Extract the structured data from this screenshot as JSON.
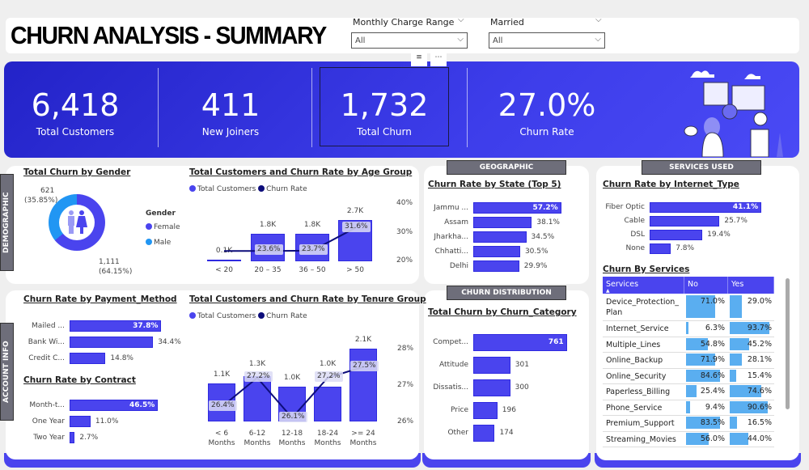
{
  "header": {
    "title": "CHURN ANALYSIS - SUMMARY",
    "slicers": [
      {
        "label": "Monthly Charge Range",
        "value": "All"
      },
      {
        "label": "Married",
        "value": "All"
      }
    ]
  },
  "kpis": [
    {
      "value": "6,418",
      "label": "Total Customers"
    },
    {
      "value": "411",
      "label": "New Joiners"
    },
    {
      "value": "1,732",
      "label": "Total Churn"
    },
    {
      "value": "27.0%",
      "label": "Churn Rate"
    }
  ],
  "sections": {
    "demographic": "DEMOGRAPHIC",
    "account": "ACCOUNT INFO",
    "geographic": "GEOGRAPHIC",
    "distribution": "CHURN DISTRIBUTION",
    "services": "SERVICES USED"
  },
  "colors": {
    "primary": "#4a44ee",
    "line": "#0d0d7a",
    "male": "#2196f3",
    "table_bar": "#5aaef0"
  },
  "gender": {
    "title": "Total Churn by Gender",
    "legend_title": "Gender",
    "slices": [
      {
        "name": "Female",
        "value": "1,111",
        "pct": "(64.15%)",
        "share": 64.15
      },
      {
        "name": "Male",
        "value": "621",
        "pct": "(35.85%)",
        "share": 35.85
      }
    ]
  },
  "age": {
    "title": "Total Customers and Churn Rate by Age Group",
    "legend": [
      "Total Customers",
      "Churn Rate"
    ],
    "axis": [
      "40%",
      "30%",
      "20%"
    ],
    "groups": [
      {
        "label": "< 20",
        "total": 0.1,
        "total_label": "0.1K",
        "rate": null,
        "rate_label": ""
      },
      {
        "label": "20 – 35",
        "total": 1.8,
        "total_label": "1.8K",
        "rate": 23.6,
        "rate_label": "23.6%"
      },
      {
        "label": "36 – 50",
        "total": 1.8,
        "total_label": "1.8K",
        "rate": 23.7,
        "rate_label": "23.7%"
      },
      {
        "label": "> 50",
        "total": 2.7,
        "total_label": "2.7K",
        "rate": 31.6,
        "rate_label": "31.6%"
      }
    ]
  },
  "payment": {
    "title": "Churn Rate by Payment_Method",
    "items": [
      {
        "label": "Mailed ...",
        "value": 37.8,
        "text": "37.8%"
      },
      {
        "label": "Bank Wi...",
        "value": 34.4,
        "text": "34.4%"
      },
      {
        "label": "Credit C...",
        "value": 14.8,
        "text": "14.8%"
      }
    ]
  },
  "contract": {
    "title": "Churn Rate by Contract",
    "items": [
      {
        "label": "Month-t...",
        "value": 46.5,
        "text": "46.5%"
      },
      {
        "label": "One Year",
        "value": 11.0,
        "text": "11.0%"
      },
      {
        "label": "Two Year",
        "value": 2.7,
        "text": "2.7%"
      }
    ]
  },
  "tenure": {
    "title": "Total Customers and Churn Rate by Tenure Group",
    "legend": [
      "Total Customers",
      "Churn Rate"
    ],
    "axis": [
      "28%",
      "27%",
      "26%"
    ],
    "groups": [
      {
        "label": [
          "< 6",
          "Months"
        ],
        "total": 1.1,
        "total_label": "1.1K",
        "rate": 26.4,
        "rate_label": "26.4%"
      },
      {
        "label": [
          "6-12",
          "Months"
        ],
        "total": 1.3,
        "total_label": "1.3K",
        "rate": 27.2,
        "rate_label": "27.2%"
      },
      {
        "label": [
          "12-18",
          "Months"
        ],
        "total": 1.0,
        "total_label": "1.0K",
        "rate": 26.1,
        "rate_label": "26.1%"
      },
      {
        "label": [
          "18-24",
          "Months"
        ],
        "total": 1.0,
        "total_label": "1.0K",
        "rate": 27.2,
        "rate_label": "27.2%"
      },
      {
        "label": [
          ">= 24",
          "Months"
        ],
        "total": 2.1,
        "total_label": "2.1K",
        "rate": 27.5,
        "rate_label": "27.5%"
      }
    ]
  },
  "state": {
    "title": "Churn Rate by State (Top 5)",
    "items": [
      {
        "label": "Jammu ...",
        "value": 57.2,
        "text": "57.2%"
      },
      {
        "label": "Assam",
        "value": 38.1,
        "text": "38.1%"
      },
      {
        "label": "Jharkha...",
        "value": 34.5,
        "text": "34.5%"
      },
      {
        "label": "Chhatti...",
        "value": 30.5,
        "text": "30.5%"
      },
      {
        "label": "Delhi",
        "value": 29.9,
        "text": "29.9%"
      }
    ]
  },
  "category": {
    "title": "Total Churn by Churn_Category",
    "items": [
      {
        "label": "Compet...",
        "value": 761,
        "text": "761"
      },
      {
        "label": "Attitude",
        "value": 301,
        "text": "301"
      },
      {
        "label": "Dissatis...",
        "value": 300,
        "text": "300"
      },
      {
        "label": "Price",
        "value": 196,
        "text": "196"
      },
      {
        "label": "Other",
        "value": 174,
        "text": "174"
      }
    ]
  },
  "internet": {
    "title": "Churn Rate by Internet_Type",
    "items": [
      {
        "label": "Fiber Optic",
        "value": 41.1,
        "text": "41.1%"
      },
      {
        "label": "Cable",
        "value": 25.7,
        "text": "25.7%"
      },
      {
        "label": "DSL",
        "value": 19.4,
        "text": "19.4%"
      },
      {
        "label": "None",
        "value": 7.8,
        "text": "7.8%"
      }
    ]
  },
  "services": {
    "title": "Churn By Services",
    "columns": [
      "Services",
      "No",
      "Yes"
    ],
    "rows": [
      {
        "name": "Device_Protection_ Plan",
        "no": 71.0,
        "no_text": "71.0%",
        "yes": 29.0,
        "yes_text": "29.0%"
      },
      {
        "name": "Internet_Service",
        "no": 6.3,
        "no_text": "6.3%",
        "yes": 93.7,
        "yes_text": "93.7%"
      },
      {
        "name": "Multiple_Lines",
        "no": 54.8,
        "no_text": "54.8%",
        "yes": 45.2,
        "yes_text": "45.2%"
      },
      {
        "name": "Online_Backup",
        "no": 71.9,
        "no_text": "71.9%",
        "yes": 28.1,
        "yes_text": "28.1%"
      },
      {
        "name": "Online_Security",
        "no": 84.6,
        "no_text": "84.6%",
        "yes": 15.4,
        "yes_text": "15.4%"
      },
      {
        "name": "Paperless_Billing",
        "no": 25.4,
        "no_text": "25.4%",
        "yes": 74.6,
        "yes_text": "74.6%"
      },
      {
        "name": "Phone_Service",
        "no": 9.4,
        "no_text": "9.4%",
        "yes": 90.6,
        "yes_text": "90.6%"
      },
      {
        "name": "Premium_Support",
        "no": 83.5,
        "no_text": "83.5%",
        "yes": 16.5,
        "yes_text": "16.5%"
      },
      {
        "name": "Streaming_Movies",
        "no": 56.0,
        "no_text": "56.0%",
        "yes": 44.0,
        "yes_text": "44.0%"
      }
    ]
  }
}
